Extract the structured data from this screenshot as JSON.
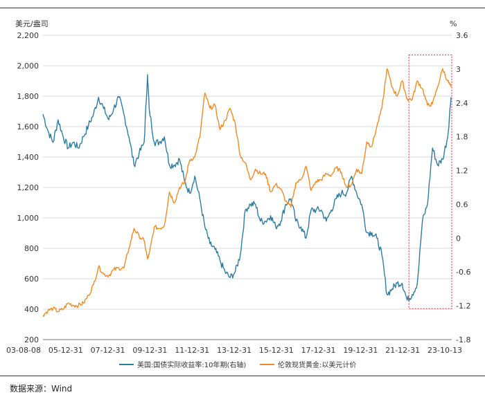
{
  "source_text": "数据来源：Wind",
  "chart_data": {
    "type": "line",
    "left_unit": "美元/盎司",
    "right_unit": "%",
    "ylim_left": [
      200,
      2200
    ],
    "ylim_right": [
      -1.8,
      3.6
    ],
    "left_ticks": [
      "200",
      "400",
      "600",
      "800",
      "1,000",
      "1,200",
      "1,400",
      "1,600",
      "1,800",
      "2,000",
      "2,200"
    ],
    "right_ticks": [
      "-1.8",
      "-1.2",
      "-0.6",
      "0",
      "0.6",
      "1.2",
      "1.8",
      "2.4",
      "3",
      "3.6"
    ],
    "x_ticks": [
      "03-08-08",
      "05-12-31",
      "07-12-31",
      "09-12-31",
      "11-12-31",
      "13-12-31",
      "15-12-31",
      "17-12-31",
      "19-12-31",
      "21-12-31",
      "23-10-13"
    ],
    "grid": "horizontal",
    "legend_position": "bottom",
    "highlight_box": {
      "x_range": [
        "2021-09",
        "2023-10"
      ],
      "y_range_right": [
        -1.25,
        3.25
      ],
      "color": "#e8424a"
    },
    "series": [
      {
        "name": "美国:国债实际收益率:10年期(右轴)",
        "axis": "right",
        "color": "#2e7ba0",
        "x": [
          "2003-08",
          "2003-11",
          "2004-02",
          "2004-05",
          "2004-08",
          "2004-11",
          "2005-02",
          "2005-05",
          "2005-08",
          "2005-11",
          "2006-02",
          "2006-05",
          "2006-08",
          "2006-11",
          "2007-02",
          "2007-05",
          "2007-08",
          "2007-11",
          "2008-02",
          "2008-05",
          "2008-08",
          "2008-10",
          "2008-11",
          "2009-02",
          "2009-05",
          "2009-08",
          "2009-11",
          "2010-02",
          "2010-05",
          "2010-08",
          "2010-11",
          "2011-02",
          "2011-05",
          "2011-08",
          "2011-11",
          "2012-02",
          "2012-05",
          "2012-08",
          "2012-11",
          "2013-02",
          "2013-05",
          "2013-08",
          "2013-11",
          "2014-02",
          "2014-05",
          "2014-08",
          "2014-11",
          "2015-02",
          "2015-05",
          "2015-08",
          "2015-11",
          "2016-02",
          "2016-05",
          "2016-08",
          "2016-11",
          "2017-02",
          "2017-05",
          "2017-08",
          "2017-11",
          "2018-02",
          "2018-05",
          "2018-08",
          "2018-11",
          "2019-02",
          "2019-05",
          "2019-08",
          "2019-11",
          "2020-02",
          "2020-05",
          "2020-08",
          "2020-11",
          "2021-02",
          "2021-05",
          "2021-08",
          "2021-11",
          "2022-02",
          "2022-05",
          "2022-08",
          "2022-11",
          "2023-02",
          "2023-05",
          "2023-08",
          "2023-10"
        ],
        "values": [
          2.2,
          1.9,
          1.7,
          2.1,
          1.8,
          1.6,
          1.7,
          1.6,
          1.8,
          2.0,
          2.2,
          2.5,
          2.3,
          2.1,
          2.3,
          2.5,
          2.2,
          1.8,
          1.3,
          1.5,
          1.7,
          2.9,
          2.3,
          1.7,
          1.7,
          1.8,
          1.3,
          1.3,
          1.4,
          1.0,
          0.8,
          1.1,
          0.7,
          0.2,
          -0.1,
          -0.2,
          -0.4,
          -0.6,
          -0.7,
          -0.6,
          -0.3,
          0.5,
          0.6,
          0.6,
          0.3,
          0.3,
          0.4,
          0.2,
          0.3,
          0.6,
          0.7,
          0.3,
          0.2,
          0.0,
          0.5,
          0.5,
          0.5,
          0.3,
          0.5,
          0.7,
          0.8,
          0.8,
          1.1,
          0.8,
          0.6,
          0.1,
          0.1,
          0.0,
          -0.3,
          -1.0,
          -0.9,
          -0.8,
          -0.8,
          -1.1,
          -1.0,
          -0.8,
          0.3,
          0.6,
          1.6,
          1.3,
          1.4,
          1.8,
          2.5
        ]
      },
      {
        "name": "伦敦现货黄金:以美元计价",
        "axis": "left",
        "color": "#f08a24",
        "x": [
          "2003-08",
          "2003-11",
          "2004-02",
          "2004-05",
          "2004-08",
          "2004-11",
          "2005-02",
          "2005-05",
          "2005-08",
          "2005-11",
          "2006-02",
          "2006-05",
          "2006-08",
          "2006-11",
          "2007-02",
          "2007-05",
          "2007-08",
          "2007-11",
          "2008-02",
          "2008-05",
          "2008-08",
          "2008-10",
          "2008-11",
          "2009-02",
          "2009-05",
          "2009-08",
          "2009-11",
          "2010-02",
          "2010-05",
          "2010-08",
          "2010-11",
          "2011-02",
          "2011-05",
          "2011-08",
          "2011-11",
          "2012-02",
          "2012-05",
          "2012-08",
          "2012-11",
          "2013-02",
          "2013-05",
          "2013-08",
          "2013-11",
          "2014-02",
          "2014-05",
          "2014-08",
          "2014-11",
          "2015-02",
          "2015-05",
          "2015-08",
          "2015-11",
          "2016-02",
          "2016-05",
          "2016-08",
          "2016-11",
          "2017-02",
          "2017-05",
          "2017-08",
          "2017-11",
          "2018-02",
          "2018-05",
          "2018-08",
          "2018-11",
          "2019-02",
          "2019-05",
          "2019-08",
          "2019-11",
          "2020-02",
          "2020-05",
          "2020-08",
          "2020-11",
          "2021-02",
          "2021-05",
          "2021-08",
          "2021-11",
          "2022-02",
          "2022-05",
          "2022-08",
          "2022-11",
          "2023-02",
          "2023-05",
          "2023-08",
          "2023-10"
        ],
        "values": [
          360,
          390,
          405,
          385,
          400,
          440,
          425,
          425,
          440,
          490,
          560,
          680,
          630,
          620,
          660,
          670,
          670,
          800,
          930,
          880,
          850,
          730,
          760,
          940,
          930,
          950,
          1170,
          1100,
          1200,
          1230,
          1380,
          1400,
          1530,
          1820,
          1720,
          1740,
          1580,
          1640,
          1720,
          1620,
          1410,
          1360,
          1250,
          1320,
          1290,
          1290,
          1170,
          1220,
          1190,
          1110,
          1070,
          1230,
          1250,
          1340,
          1180,
          1240,
          1250,
          1290,
          1280,
          1330,
          1300,
          1200,
          1220,
          1320,
          1290,
          1500,
          1470,
          1600,
          1720,
          1980,
          1860,
          1800,
          1900,
          1780,
          1780,
          1900,
          1850,
          1740,
          1750,
          1860,
          1980,
          1900,
          1860
        ]
      }
    ]
  }
}
